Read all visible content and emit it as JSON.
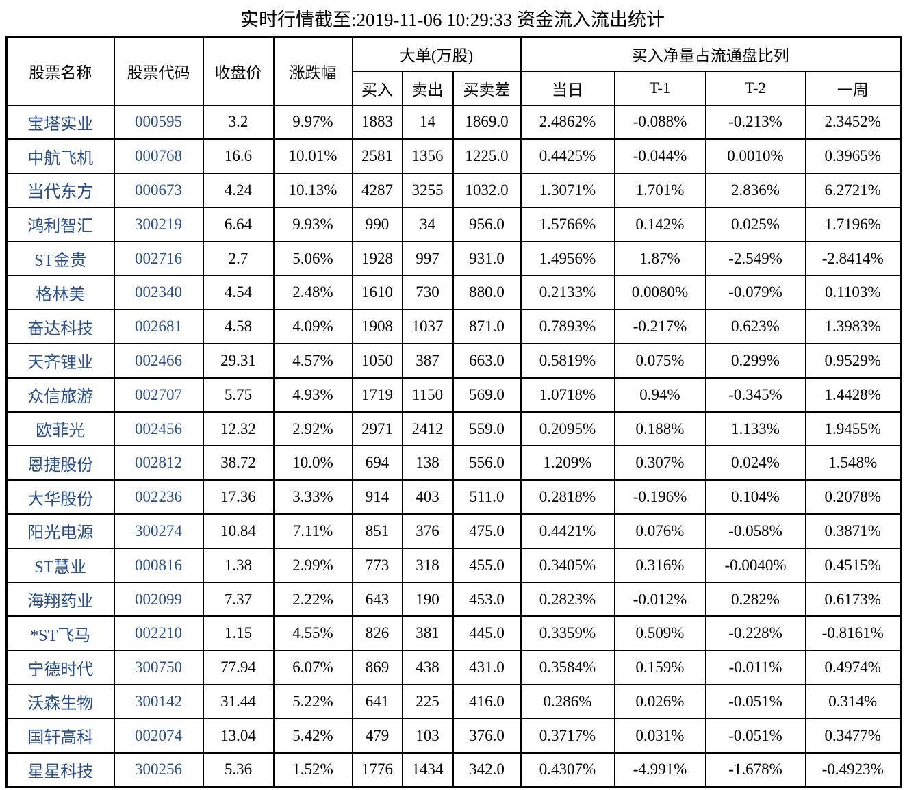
{
  "title": "实时行情截至:2019-11-06 10:29:33 资金流入流出统计",
  "colors": {
    "link_blue": "#284E8C",
    "border": "#000000",
    "text": "#000000",
    "background": "#ffffff"
  },
  "table": {
    "headers": {
      "stock_name": "股票名称",
      "stock_code": "股票代码",
      "close_price": "收盘价",
      "change_pct": "涨跌幅",
      "big_order_group": "大单(万股)",
      "buy": "买入",
      "sell": "卖出",
      "buy_sell_diff": "买卖差",
      "net_buy_ratio_group": "买入净量占流通盘比列",
      "day": "当日",
      "t1": "T-1",
      "t2": "T-2",
      "week": "一周"
    },
    "row_fields": [
      "stock-name",
      "stock-code",
      "close-price",
      "change-pct",
      "big-buy",
      "big-sell",
      "buy-sell-diff",
      "ratio-day",
      "ratio-t1",
      "ratio-t2",
      "ratio-week"
    ],
    "rows": [
      [
        "宝塔实业",
        "000595",
        "3.2",
        "9.97%",
        "1883",
        "14",
        "1869.0",
        "2.4862%",
        "-0.088%",
        "-0.213%",
        "2.3452%"
      ],
      [
        "中航飞机",
        "000768",
        "16.6",
        "10.01%",
        "2581",
        "1356",
        "1225.0",
        "0.4425%",
        "-0.044%",
        "0.0010%",
        "0.3965%"
      ],
      [
        "当代东方",
        "000673",
        "4.24",
        "10.13%",
        "4287",
        "3255",
        "1032.0",
        "1.3071%",
        "1.701%",
        "2.836%",
        "6.2721%"
      ],
      [
        "鸿利智汇",
        "300219",
        "6.64",
        "9.93%",
        "990",
        "34",
        "956.0",
        "1.5766%",
        "0.142%",
        "0.025%",
        "1.7196%"
      ],
      [
        "ST金贵",
        "002716",
        "2.7",
        "5.06%",
        "1928",
        "997",
        "931.0",
        "1.4956%",
        "1.87%",
        "-2.549%",
        "-2.8414%"
      ],
      [
        "格林美",
        "002340",
        "4.54",
        "2.48%",
        "1610",
        "730",
        "880.0",
        "0.2133%",
        "0.0080%",
        "-0.079%",
        "0.1103%"
      ],
      [
        "奋达科技",
        "002681",
        "4.58",
        "4.09%",
        "1908",
        "1037",
        "871.0",
        "0.7893%",
        "-0.217%",
        "0.623%",
        "1.3983%"
      ],
      [
        "天齐锂业",
        "002466",
        "29.31",
        "4.57%",
        "1050",
        "387",
        "663.0",
        "0.5819%",
        "0.075%",
        "0.299%",
        "0.9529%"
      ],
      [
        "众信旅游",
        "002707",
        "5.75",
        "4.93%",
        "1719",
        "1150",
        "569.0",
        "1.0718%",
        "0.94%",
        "-0.345%",
        "1.4428%"
      ],
      [
        "欧菲光",
        "002456",
        "12.32",
        "2.92%",
        "2971",
        "2412",
        "559.0",
        "0.2095%",
        "0.188%",
        "1.133%",
        "1.9455%"
      ],
      [
        "恩捷股份",
        "002812",
        "38.72",
        "10.0%",
        "694",
        "138",
        "556.0",
        "1.209%",
        "0.307%",
        "0.024%",
        "1.548%"
      ],
      [
        "大华股份",
        "002236",
        "17.36",
        "3.33%",
        "914",
        "403",
        "511.0",
        "0.2818%",
        "-0.196%",
        "0.104%",
        "0.2078%"
      ],
      [
        "阳光电源",
        "300274",
        "10.84",
        "7.11%",
        "851",
        "376",
        "475.0",
        "0.4421%",
        "0.076%",
        "-0.058%",
        "0.3871%"
      ],
      [
        "ST慧业",
        "000816",
        "1.38",
        "2.99%",
        "773",
        "318",
        "455.0",
        "0.3405%",
        "0.316%",
        "-0.0040%",
        "0.4515%"
      ],
      [
        "海翔药业",
        "002099",
        "7.37",
        "2.22%",
        "643",
        "190",
        "453.0",
        "0.2823%",
        "-0.012%",
        "0.282%",
        "0.6173%"
      ],
      [
        "*ST飞马",
        "002210",
        "1.15",
        "4.55%",
        "826",
        "381",
        "445.0",
        "0.3359%",
        "0.509%",
        "-0.228%",
        "-0.8161%"
      ],
      [
        "宁德时代",
        "300750",
        "77.94",
        "6.07%",
        "869",
        "438",
        "431.0",
        "0.3584%",
        "0.159%",
        "-0.011%",
        "0.4974%"
      ],
      [
        "沃森生物",
        "300142",
        "31.44",
        "5.22%",
        "641",
        "225",
        "416.0",
        "0.286%",
        "0.026%",
        "-0.051%",
        "0.314%"
      ],
      [
        "国轩高科",
        "002074",
        "13.04",
        "5.42%",
        "479",
        "103",
        "376.0",
        "0.3717%",
        "0.031%",
        "-0.051%",
        "0.3477%"
      ],
      [
        "星星科技",
        "300256",
        "5.36",
        "1.52%",
        "1776",
        "1434",
        "342.0",
        "0.4307%",
        "-4.991%",
        "-1.678%",
        "-0.4923%"
      ]
    ]
  }
}
